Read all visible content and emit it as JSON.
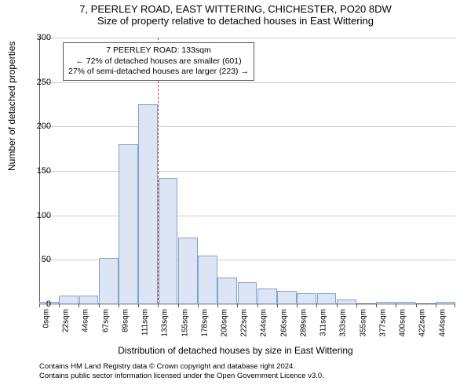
{
  "chart": {
    "type": "histogram",
    "title_line1": "7, PEERLEY ROAD, EAST WITTERING, CHICHESTER, PO20 8DW",
    "title_line2": "Size of property relative to detached houses in East Wittering",
    "ylabel": "Number of detached properties",
    "xlabel": "Distribution of detached houses by size in East Wittering",
    "ylim_max": 300,
    "y_ticks": [
      0,
      50,
      100,
      150,
      200,
      250,
      300
    ],
    "grid_color": "#cccccc",
    "background_color": "#ffffff",
    "bar_fill": "#dbe5f4",
    "bar_border": "#87a0c9",
    "ref_line_color": "#d43a2f",
    "ref_line_x_category_index": 6,
    "x_categories": [
      "0sqm",
      "22sqm",
      "44sqm",
      "67sqm",
      "89sqm",
      "111sqm",
      "133sqm",
      "155sqm",
      "178sqm",
      "200sqm",
      "222sqm",
      "244sqm",
      "266sqm",
      "289sqm",
      "311sqm",
      "333sqm",
      "355sqm",
      "377sqm",
      "400sqm",
      "422sqm",
      "444sqm"
    ],
    "bar_values": [
      3,
      10,
      10,
      52,
      180,
      225,
      142,
      75,
      55,
      30,
      25,
      18,
      15,
      12,
      12,
      5,
      0,
      3,
      3,
      0,
      3
    ],
    "annotation": {
      "line1": "7 PEERLEY ROAD: 133sqm",
      "line2": "← 72% of detached houses are smaller (601)",
      "line3": "27% of semi-detached houses are larger (223) →"
    },
    "attribution": {
      "line1": "Contains HM Land Registry data © Crown copyright and database right 2024.",
      "line2": "Contains public sector information licensed under the Open Government Licence v3.0."
    },
    "title_fontsize": 13,
    "label_fontsize": 12,
    "tick_fontsize": 11,
    "annotation_fontsize": 10.5,
    "attribution_fontsize": 9.5
  }
}
